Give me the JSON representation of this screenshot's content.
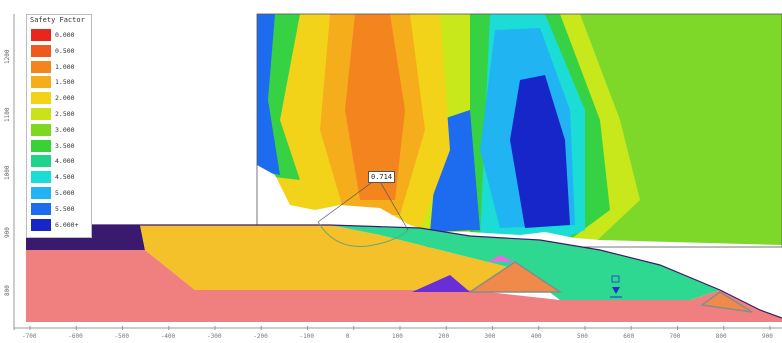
{
  "legend": {
    "title": "Safety Factor",
    "items": [
      {
        "label": "0.000",
        "color": "#e8261e"
      },
      {
        "label": "0.500",
        "color": "#ee5a1e"
      },
      {
        "label": "1.000",
        "color": "#f4851e"
      },
      {
        "label": "1.500",
        "color": "#f6ad1c"
      },
      {
        "label": "2.000",
        "color": "#f3d31a"
      },
      {
        "label": "2.500",
        "color": "#c9e21a"
      },
      {
        "label": "3.000",
        "color": "#7fd81f"
      },
      {
        "label": "3.500",
        "color": "#36d236"
      },
      {
        "label": "4.000",
        "color": "#1fd48a"
      },
      {
        "label": "4.500",
        "color": "#1cdcd6"
      },
      {
        "label": "5.000",
        "color": "#20b4f2"
      },
      {
        "label": "5.500",
        "color": "#1d6cf0"
      },
      {
        "label": "6.000+",
        "color": "#1726c8"
      }
    ]
  },
  "critical_surface": {
    "factor_of_safety": "0.714"
  },
  "axis": {
    "y_ticks": [
      "1200",
      "1100",
      "1000",
      "900",
      "800"
    ],
    "x_ticks": [
      "-700",
      "-600",
      "-500",
      "-400",
      "-300",
      "-200",
      "-100",
      "0",
      "100",
      "200",
      "300",
      "400",
      "500",
      "600",
      "700",
      "800",
      "900"
    ]
  },
  "colors": {
    "bedrock": "#f08080",
    "fill_layer": "#f5c12a",
    "waste_layer": "#2fd890",
    "dyke": "#f08a4a",
    "dark_layer": "#3a1a6e",
    "water_marker": "#2233cc"
  }
}
